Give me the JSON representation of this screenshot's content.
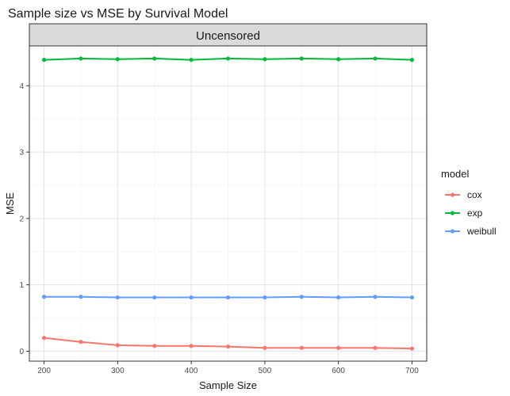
{
  "chart_data": {
    "type": "line",
    "title": "Sample size vs MSE by Survival Model",
    "facet_label": "Uncensored",
    "xlabel": "Sample Size",
    "ylabel": "MSE",
    "xlim": [
      180,
      720
    ],
    "ylim": [
      -0.15,
      4.6
    ],
    "x_ticks": [
      200,
      300,
      400,
      500,
      600,
      700
    ],
    "y_ticks": [
      0,
      1,
      2,
      3,
      4
    ],
    "grid": true,
    "legend_title": "model",
    "legend_position": "right",
    "x": [
      200,
      250,
      300,
      350,
      400,
      450,
      500,
      550,
      600,
      650,
      700
    ],
    "series": [
      {
        "name": "cox",
        "color": "#F8766D",
        "values": [
          0.2,
          0.14,
          0.09,
          0.08,
          0.08,
          0.07,
          0.05,
          0.05,
          0.05,
          0.05,
          0.04
        ]
      },
      {
        "name": "exp",
        "color": "#00BA38",
        "values": [
          4.39,
          4.41,
          4.4,
          4.41,
          4.39,
          4.41,
          4.4,
          4.41,
          4.4,
          4.41,
          4.39
        ]
      },
      {
        "name": "weibull",
        "color": "#619CFF",
        "values": [
          0.82,
          0.82,
          0.81,
          0.81,
          0.81,
          0.81,
          0.81,
          0.82,
          0.81,
          0.82,
          0.81
        ]
      }
    ]
  }
}
